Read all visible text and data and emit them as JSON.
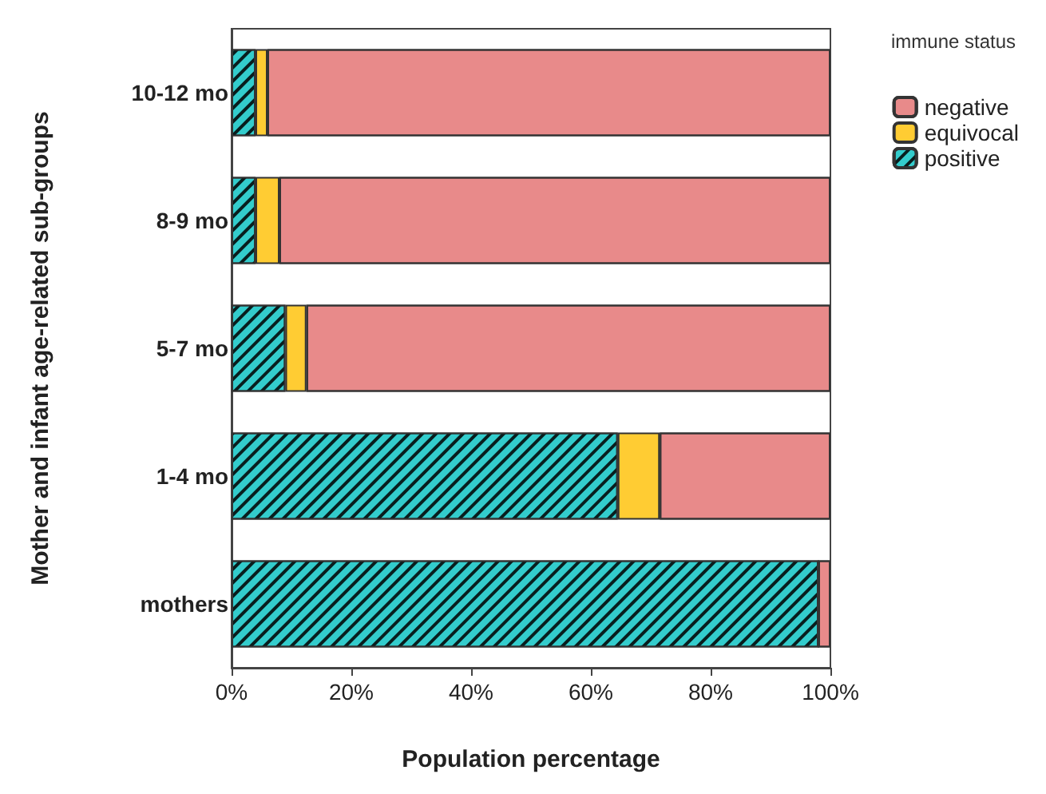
{
  "chart_data": {
    "type": "bar",
    "orientation": "horizontal",
    "stacked": true,
    "xlabel": "Population percentage",
    "ylabel": "Mother and infant age-related sub-groups",
    "legend_title": "immune status",
    "legend": "right",
    "categories": [
      "10-12 mo",
      "8-9 mo",
      "5-7 mo",
      "1-4 mo",
      "mothers"
    ],
    "series": [
      {
        "name": "positive",
        "color": "#33cccc",
        "values": [
          4,
          4,
          9,
          64.5,
          98
        ]
      },
      {
        "name": "equivocal",
        "color": "#ffcc33",
        "values": [
          2,
          4,
          3.5,
          7,
          0
        ]
      },
      {
        "name": "negative",
        "color": "#e88a8a",
        "values": [
          94,
          92,
          87.5,
          28.5,
          2
        ]
      }
    ],
    "xlim": [
      0,
      100
    ],
    "xticks": [
      {
        "value": 0,
        "label": "0%"
      },
      {
        "value": 20,
        "label": "20%"
      },
      {
        "value": 40,
        "label": "40%"
      },
      {
        "value": 60,
        "label": "60%"
      },
      {
        "value": 80,
        "label": "80%"
      },
      {
        "value": 100,
        "label": "100%"
      }
    ]
  }
}
